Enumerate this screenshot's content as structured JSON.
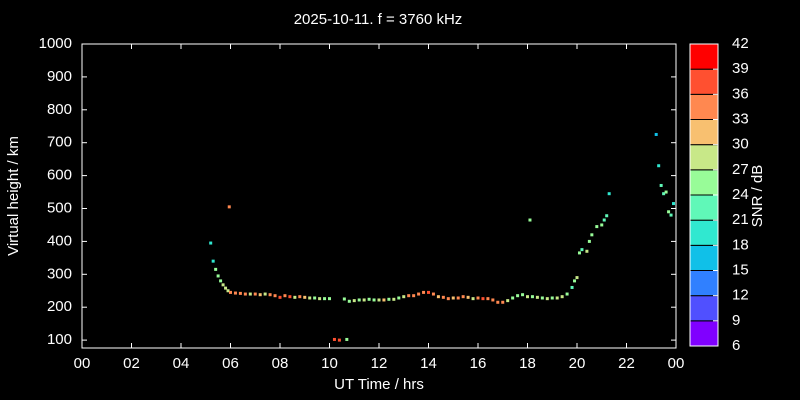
{
  "chart_data": {
    "type": "scatter",
    "title": "2025-10-11. f = 3760 kHz",
    "xlabel": "UT Time / hrs",
    "ylabel": "Virtual height / km",
    "colorbar_label": "SNR / dB",
    "xlim": [
      0,
      24
    ],
    "xticks": [
      {
        "value": 0,
        "label": "00"
      },
      {
        "value": 2,
        "label": "02"
      },
      {
        "value": 4,
        "label": "04"
      },
      {
        "value": 6,
        "label": "06"
      },
      {
        "value": 8,
        "label": "08"
      },
      10,
      12,
      14,
      16,
      18,
      20,
      22,
      {
        "value": 24,
        "label": "00"
      }
    ],
    "ylim": [
      76,
      1000
    ],
    "yticks": [
      100,
      200,
      300,
      400,
      500,
      600,
      700,
      800,
      900,
      1000
    ],
    "clim": [
      6,
      42
    ],
    "cticks": [
      6,
      9,
      12,
      15,
      18,
      21,
      24,
      27,
      30,
      33,
      36,
      39,
      42
    ],
    "colors": [
      "#8000ff",
      "#5050ff",
      "#3080ff",
      "#10c0e8",
      "#30e8d0",
      "#60f8b8",
      "#98fc98",
      "#c8e888",
      "#f8c070",
      "#ff8850",
      "#ff5030",
      "#ff0000"
    ],
    "x": [
      5.2,
      5.3,
      5.4,
      5.5,
      5.6,
      5.7,
      5.8,
      5.9,
      5.95,
      6.0,
      6.2,
      6.4,
      6.6,
      6.8,
      7.0,
      7.2,
      7.4,
      7.6,
      7.8,
      8.0,
      8.2,
      8.4,
      8.6,
      8.8,
      9.0,
      9.2,
      9.4,
      9.6,
      9.8,
      10.0,
      10.2,
      10.4,
      10.7,
      10.6,
      10.8,
      11.0,
      11.2,
      11.4,
      11.6,
      11.8,
      12.0,
      12.2,
      12.4,
      12.6,
      12.8,
      13.0,
      13.2,
      13.4,
      13.6,
      13.8,
      14.0,
      14.2,
      14.4,
      14.6,
      14.8,
      15.0,
      15.2,
      15.4,
      15.6,
      15.8,
      16.0,
      16.2,
      16.4,
      16.6,
      16.8,
      17.0,
      17.2,
      17.4,
      17.6,
      17.8,
      18.0,
      18.1,
      18.2,
      18.4,
      18.6,
      18.8,
      19.0,
      19.2,
      19.4,
      19.6,
      19.8,
      19.9,
      20.0,
      20.1,
      20.2,
      20.4,
      20.5,
      20.6,
      20.8,
      21.0,
      21.1,
      21.2,
      21.3,
      23.2,
      23.3,
      23.4,
      23.5,
      23.6,
      23.7,
      23.8,
      23.9
    ],
    "y": [
      395,
      340,
      315,
      295,
      280,
      268,
      258,
      250,
      505,
      245,
      243,
      242,
      240,
      240,
      240,
      238,
      240,
      238,
      235,
      230,
      235,
      232,
      230,
      232,
      230,
      228,
      228,
      226,
      226,
      226,
      102,
      100,
      102,
      225,
      218,
      220,
      222,
      222,
      224,
      222,
      222,
      222,
      224,
      224,
      228,
      232,
      235,
      235,
      240,
      245,
      245,
      240,
      232,
      230,
      226,
      228,
      228,
      232,
      230,
      226,
      228,
      226,
      226,
      222,
      215,
      215,
      220,
      228,
      235,
      238,
      232,
      465,
      232,
      230,
      228,
      226,
      228,
      228,
      232,
      240,
      260,
      280,
      290,
      365,
      375,
      370,
      400,
      420,
      445,
      450,
      465,
      478,
      545,
      725,
      630,
      570,
      545,
      550,
      490,
      480,
      515
    ],
    "snr": [
      18,
      18,
      24,
      24,
      24,
      27,
      27,
      27,
      33,
      33,
      33,
      33,
      33,
      27,
      33,
      30,
      27,
      33,
      33,
      36,
      33,
      36,
      27,
      33,
      30,
      27,
      24,
      27,
      24,
      24,
      36,
      36,
      24,
      24,
      24,
      27,
      24,
      27,
      24,
      24,
      27,
      30,
      24,
      27,
      24,
      27,
      33,
      33,
      33,
      33,
      36,
      33,
      30,
      33,
      33,
      30,
      33,
      33,
      30,
      27,
      33,
      36,
      33,
      33,
      33,
      33,
      27,
      24,
      24,
      24,
      27,
      24,
      24,
      27,
      24,
      27,
      24,
      27,
      27,
      24,
      21,
      24,
      27,
      24,
      21,
      27,
      24,
      24,
      24,
      24,
      21,
      21,
      18,
      15,
      18,
      21,
      21,
      24,
      24,
      21,
      18
    ]
  }
}
